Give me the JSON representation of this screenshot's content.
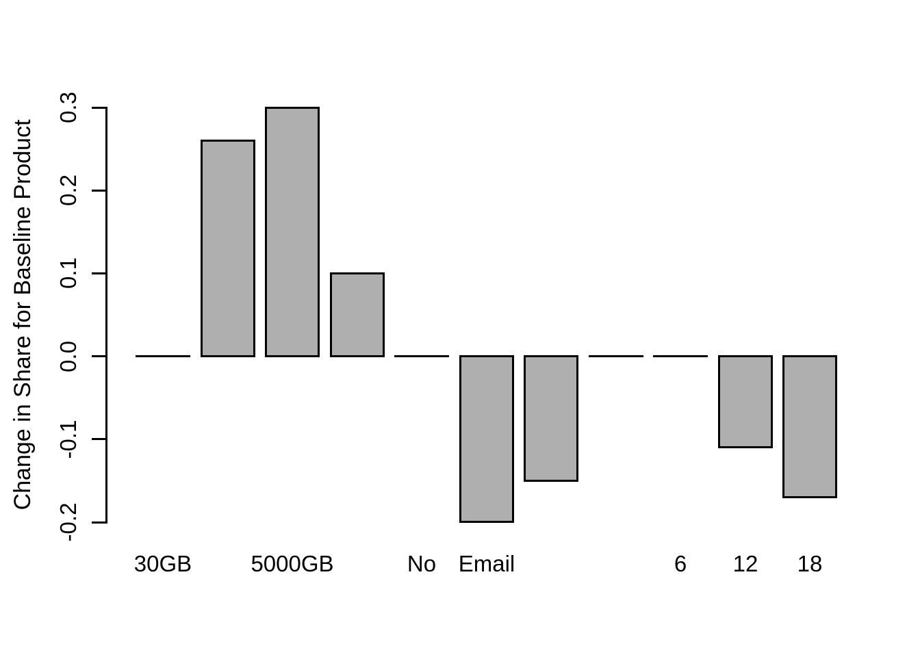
{
  "figure": {
    "background_color": "#ffffff",
    "text_color": "#000000"
  },
  "chart_data": {
    "type": "bar",
    "title": "",
    "xlabel": "",
    "ylabel": "Change in Share for Baseline Product",
    "categories": [
      "30GB",
      "",
      "5000GB",
      "",
      "No",
      "Email",
      "",
      "",
      "6",
      "12",
      "18"
    ],
    "values": [
      0,
      0.26,
      0.3,
      0.1,
      0,
      -0.2,
      -0.15,
      0,
      0,
      -0.11,
      -0.17
    ],
    "ylim": [
      -0.2,
      0.3
    ],
    "ytick_labels": [
      "-0.2",
      "-0.1",
      "0.0",
      "0.1",
      "0.2",
      "0.3"
    ],
    "ytick_values": [
      -0.2,
      -0.1,
      0.0,
      0.1,
      0.2,
      0.3
    ],
    "grid": false,
    "legend_position": "none",
    "bar_fill_color": "#AFAFAF",
    "bar_border_color": "#000000",
    "axis_color": "#000000"
  }
}
